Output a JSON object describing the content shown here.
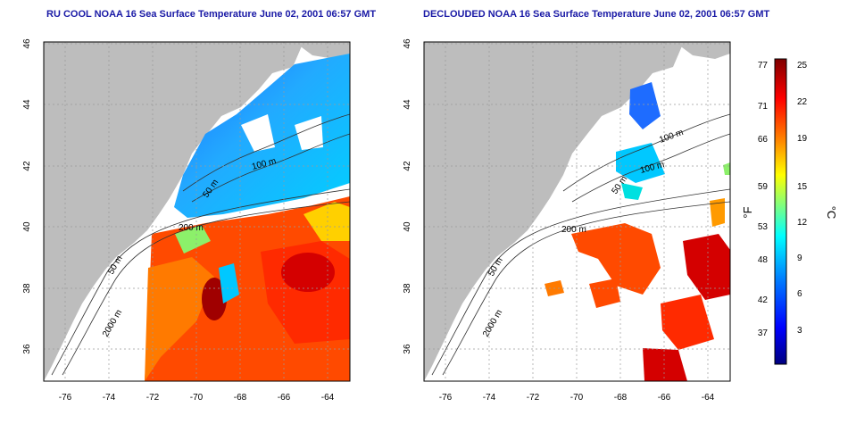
{
  "panels": [
    {
      "title": "RU COOL NOAA 16 Sea Surface Temperature June 02, 2001 06:57 GMT",
      "contour_labels": [
        "100 m",
        "50 m",
        "200 m",
        "50 m",
        "2000 m"
      ]
    },
    {
      "title": "DECLOUDED NOAA 16 Sea Surface Temperature June 02, 2001 06:57 GMT",
      "contour_labels": [
        "100 m",
        "100 m",
        "50 m",
        "200 m",
        "50 m",
        "2000 m"
      ]
    }
  ],
  "axes": {
    "lon_ticks": [
      "-76",
      "-74",
      "-72",
      "-70",
      "-68",
      "-66",
      "-64"
    ],
    "lat_ticks": [
      "46",
      "44",
      "42",
      "40",
      "38",
      "36"
    ]
  },
  "colorbar": {
    "f_label": "°F",
    "c_label": "°C",
    "f_ticks": [
      "77",
      "71",
      "66",
      "59",
      "53",
      "48",
      "42",
      "37"
    ],
    "c_ticks": [
      "25",
      "22",
      "19",
      "15",
      "12",
      "9",
      "6",
      "3"
    ]
  },
  "colors": {
    "land": "#bdbdbd",
    "title": "#1a1aa6",
    "grid": "#9a9a9a",
    "scale": [
      "#00007f",
      "#0000ff",
      "#007fff",
      "#00ffff",
      "#7fff7f",
      "#ffff00",
      "#ff7f00",
      "#ff0000",
      "#7f0000"
    ]
  }
}
